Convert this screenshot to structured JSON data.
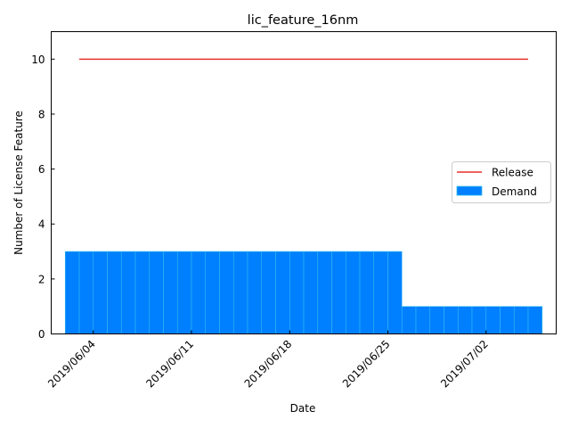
{
  "chart_data": {
    "type": "bar",
    "title": "lic_feature_16nm",
    "xlabel": "Date",
    "ylabel": "Number of License Feature",
    "ylim": [
      0,
      11
    ],
    "yticks": [
      0,
      2,
      4,
      6,
      8,
      10
    ],
    "xlim": [
      "2019-06-01",
      "2019-07-07"
    ],
    "xticks": [
      {
        "date": "2019-06-04",
        "label": "2019/06/04"
      },
      {
        "date": "2019-06-11",
        "label": "2019/06/11"
      },
      {
        "date": "2019-06-18",
        "label": "2019/06/18"
      },
      {
        "date": "2019-06-25",
        "label": "2019/06/25"
      },
      {
        "date": "2019-07-02",
        "label": "2019/07/02"
      }
    ],
    "grid": false,
    "legend_position": "center-right",
    "series": [
      {
        "name": "Release",
        "type": "line",
        "color": "#e8302a",
        "start": "2019-06-03",
        "end": "2019-07-05",
        "value": 10
      },
      {
        "name": "Demand",
        "type": "bar",
        "color": "#0080ff",
        "edge_color": "#33bbee",
        "x": [
          "2019-06-02",
          "2019-06-03",
          "2019-06-04",
          "2019-06-05",
          "2019-06-06",
          "2019-06-07",
          "2019-06-08",
          "2019-06-09",
          "2019-06-10",
          "2019-06-11",
          "2019-06-12",
          "2019-06-13",
          "2019-06-14",
          "2019-06-15",
          "2019-06-16",
          "2019-06-17",
          "2019-06-18",
          "2019-06-19",
          "2019-06-20",
          "2019-06-21",
          "2019-06-22",
          "2019-06-23",
          "2019-06-24",
          "2019-06-25",
          "2019-06-26",
          "2019-06-27",
          "2019-06-28",
          "2019-06-29",
          "2019-06-30",
          "2019-07-01",
          "2019-07-02",
          "2019-07-03",
          "2019-07-04",
          "2019-07-05"
        ],
        "values": [
          3,
          3,
          3,
          3,
          3,
          3,
          3,
          3,
          3,
          3,
          3,
          3,
          3,
          3,
          3,
          3,
          3,
          3,
          3,
          3,
          3,
          3,
          3,
          3,
          1,
          1,
          1,
          1,
          1,
          1,
          1,
          1,
          1,
          1
        ]
      }
    ]
  }
}
